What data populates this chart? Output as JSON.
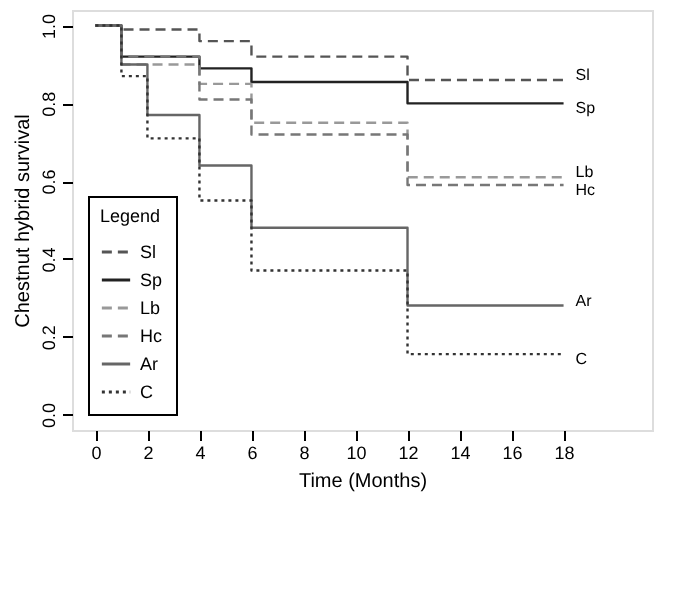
{
  "chart_data": {
    "type": "step",
    "xlabel": "Time (Months)",
    "ylabel": "Chestnut hybrid survival",
    "legend_title": "Legend",
    "x": [
      0,
      1,
      2,
      4,
      6,
      12,
      18
    ],
    "series": [
      {
        "name": "Sl",
        "color": "#555555",
        "line_style": "dashed",
        "values": [
          1.0,
          0.99,
          0.99,
          0.96,
          0.92,
          0.86,
          0.86
        ]
      },
      {
        "name": "Sp",
        "color": "#222222",
        "line_style": "solid",
        "values": [
          1.0,
          0.92,
          0.92,
          0.89,
          0.855,
          0.8,
          0.8
        ]
      },
      {
        "name": "Lb",
        "color": "#999999",
        "line_style": "dashed",
        "values": [
          1.0,
          0.9,
          0.9,
          0.85,
          0.75,
          0.61,
          0.61
        ]
      },
      {
        "name": "Hc",
        "color": "#777777",
        "line_style": "dashed",
        "values": [
          1.0,
          0.92,
          0.92,
          0.81,
          0.72,
          0.59,
          0.59
        ]
      },
      {
        "name": "Ar",
        "color": "#666666",
        "line_style": "solid",
        "values": [
          1.0,
          0.9,
          0.77,
          0.64,
          0.48,
          0.28,
          0.28
        ]
      },
      {
        "name": "C",
        "color": "#333333",
        "line_style": "dotted",
        "values": [
          1.0,
          0.87,
          0.71,
          0.55,
          0.37,
          0.155,
          0.155
        ]
      }
    ],
    "xlim": [
      -0.9,
      21.4
    ],
    "ylim": [
      -0.04,
      1.04
    ],
    "xticks": [
      0,
      2,
      4,
      6,
      8,
      10,
      12,
      14,
      16,
      18
    ],
    "yticks": [
      {
        "value": 0,
        "label": "0.0"
      },
      0.2,
      0.4,
      0.6,
      0.8,
      {
        "value": 1,
        "label": "1.0"
      }
    ],
    "grid": false,
    "legend": "bottom left",
    "marker": "none"
  }
}
